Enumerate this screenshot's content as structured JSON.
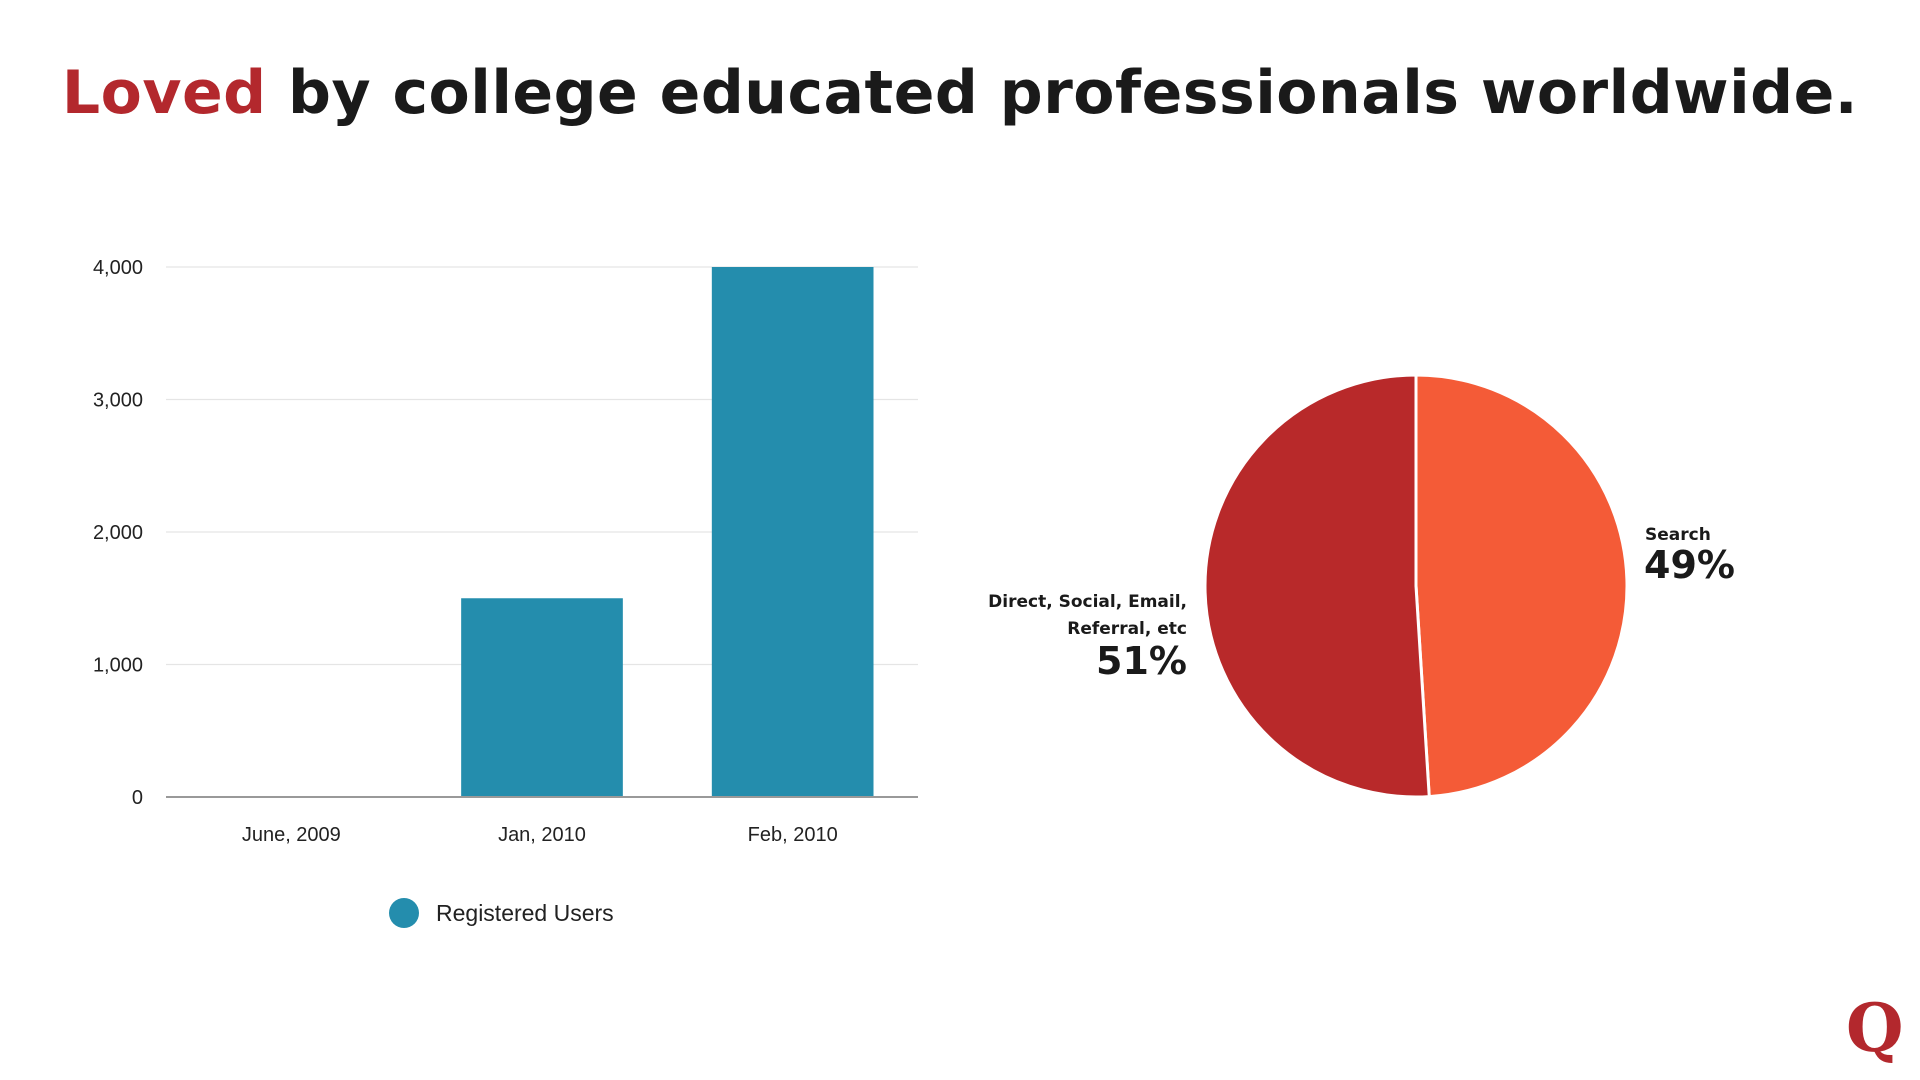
{
  "headline": {
    "accent": "Loved",
    "rest": " by college educated professionals worldwide."
  },
  "colors": {
    "accent": "#b3282d",
    "bar": "#248dad",
    "search": "#f45b37",
    "direct": "#b8292a",
    "grid": "#e5e5e5",
    "axis": "#999999"
  },
  "chart_data": [
    {
      "type": "bar",
      "categories": [
        "June, 2009",
        "Jan, 2010",
        "Feb, 2010"
      ],
      "series": [
        {
          "name": "Registered Users",
          "values": [
            0,
            1500,
            4000
          ]
        }
      ],
      "yticks": [
        "0",
        "1,000",
        "2,000",
        "3,000",
        "4,000"
      ],
      "ylim": [
        0,
        4000
      ],
      "grid": true,
      "legend": "bottom"
    },
    {
      "type": "pie",
      "slices": [
        {
          "label": "Search",
          "value": 49,
          "pct_label": "49%"
        },
        {
          "label_lines": [
            "Direct, Social, Email,",
            "Referral, etc"
          ],
          "value": 51,
          "pct_label": "51%"
        }
      ]
    }
  ],
  "logo": {
    "text": "Q",
    "icon": "quora-logo-icon"
  }
}
